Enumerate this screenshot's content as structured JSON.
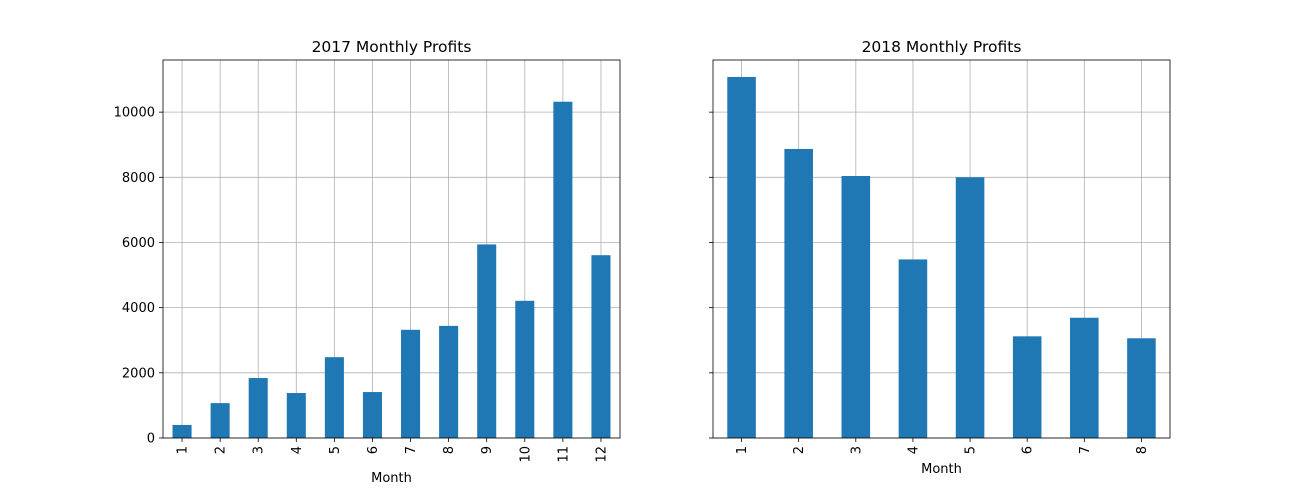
{
  "chart_data": [
    {
      "type": "bar",
      "title": "2017 Monthly Profits",
      "xlabel": "Month",
      "ylabel": "",
      "categories": [
        "1",
        "2",
        "3",
        "4",
        "5",
        "6",
        "7",
        "8",
        "9",
        "10",
        "11",
        "12"
      ],
      "values": [
        400,
        1070,
        1840,
        1380,
        2480,
        1410,
        3320,
        3440,
        5940,
        4210,
        10320,
        5610
      ],
      "ylim": [
        0,
        11600
      ],
      "yticks": [
        0,
        2000,
        4000,
        6000,
        8000,
        10000
      ],
      "grid": true,
      "color": "#1f77b4"
    },
    {
      "type": "bar",
      "title": "2018 Monthly Profits",
      "xlabel": "Month",
      "ylabel": "",
      "categories": [
        "1",
        "2",
        "3",
        "4",
        "5",
        "6",
        "7",
        "8"
      ],
      "values": [
        11080,
        8870,
        8040,
        5480,
        8000,
        3120,
        3690,
        3060
      ],
      "ylim": [
        0,
        11600
      ],
      "yticks": [
        0,
        2000,
        4000,
        6000,
        8000,
        10000
      ],
      "grid": true,
      "color": "#1f77b4"
    }
  ]
}
